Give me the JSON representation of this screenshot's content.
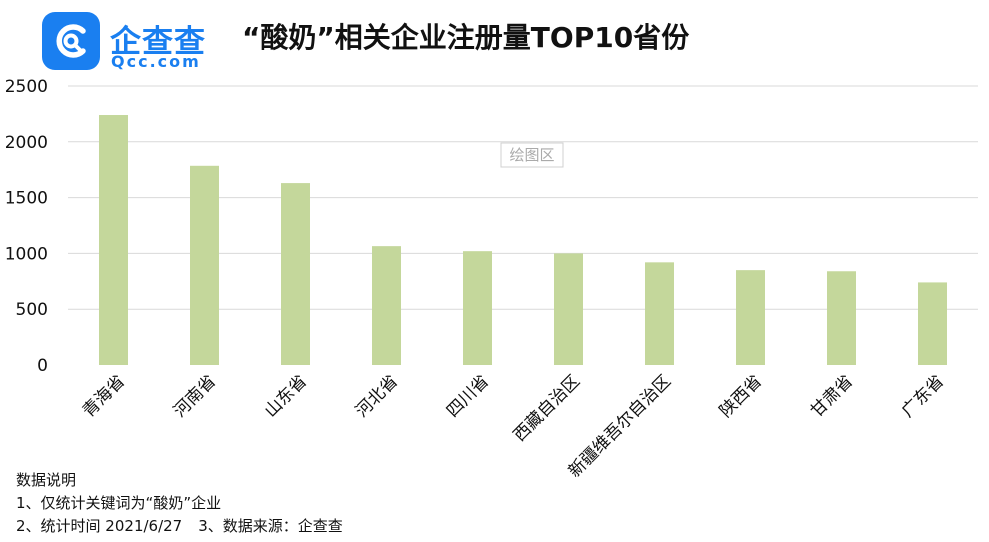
{
  "header": {
    "logo_cn": "企查查",
    "logo_en": "Qcc.com",
    "title": "“酸奶”相关企业注册量TOP10省份"
  },
  "plot_area_label": "绘图区",
  "notes": {
    "heading": "数据说明",
    "line1": "1、仅统计关键词为“酸奶”企业",
    "line2_time": "2、统计时间 2021/6/27",
    "line2_source": "3、数据来源：企查查"
  },
  "colors": {
    "bar": "#c4d79b",
    "brand": "#1a7ff0",
    "grid": "#d9d9d9"
  },
  "chart_data": {
    "type": "bar",
    "title": "“酸奶”相关企业注册量TOP10省份",
    "categories": [
      "青海省",
      "河南省",
      "山东省",
      "河北省",
      "四川省",
      "西藏自治区",
      "新疆维吾尔自治区",
      "陕西省",
      "甘肃省",
      "广东省"
    ],
    "values": [
      2240,
      1785,
      1630,
      1065,
      1020,
      1000,
      920,
      850,
      840,
      740
    ],
    "yticks": [
      0,
      500,
      1000,
      1500,
      2000,
      2500
    ],
    "ylim": [
      0,
      2500
    ],
    "grid": true,
    "legend": "none"
  }
}
